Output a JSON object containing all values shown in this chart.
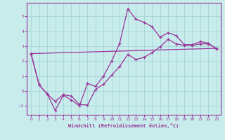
{
  "background_color": "#c8ecec",
  "grid_color": "#a8d8d8",
  "line_color": "#993399",
  "xlim": [
    -0.5,
    23.5
  ],
  "ylim": [
    -1.6,
    5.9
  ],
  "xticks": [
    0,
    1,
    2,
    3,
    4,
    5,
    6,
    7,
    8,
    9,
    10,
    11,
    12,
    13,
    14,
    15,
    16,
    17,
    18,
    19,
    20,
    21,
    22,
    23
  ],
  "yticks": [
    -1,
    0,
    1,
    2,
    3,
    4,
    5
  ],
  "line1_x": [
    0,
    1,
    2,
    3,
    4,
    5,
    6,
    7,
    8,
    9,
    10,
    11,
    12,
    13,
    14,
    15,
    16,
    17,
    18,
    19,
    20,
    21,
    22,
    23
  ],
  "line1_y": [
    2.5,
    0.4,
    -0.2,
    -1.3,
    -0.3,
    -0.6,
    -1.0,
    0.5,
    0.3,
    1.0,
    2.0,
    3.2,
    5.5,
    4.8,
    4.6,
    4.3,
    3.6,
    3.9,
    3.7,
    3.1,
    3.1,
    3.3,
    3.2,
    2.8
  ],
  "line2_x": [
    0,
    1,
    2,
    3,
    4,
    5,
    6,
    7,
    8,
    9,
    10,
    11,
    12,
    13,
    14,
    15,
    16,
    17,
    18,
    19,
    20,
    21,
    22,
    23
  ],
  "line2_y": [
    2.5,
    0.4,
    -0.2,
    -0.7,
    -0.25,
    -0.35,
    -0.9,
    -0.95,
    0.1,
    0.45,
    1.05,
    1.65,
    2.45,
    2.1,
    2.25,
    2.55,
    2.95,
    3.45,
    3.15,
    3.05,
    3.05,
    3.15,
    3.15,
    2.85
  ],
  "line3_x": [
    0,
    23
  ],
  "line3_y": [
    2.5,
    2.85
  ],
  "xlabel": "Windchill (Refroidissement éolien,°C)",
  "tick_fontsize": 4.5,
  "xlabel_fontsize": 5.0
}
